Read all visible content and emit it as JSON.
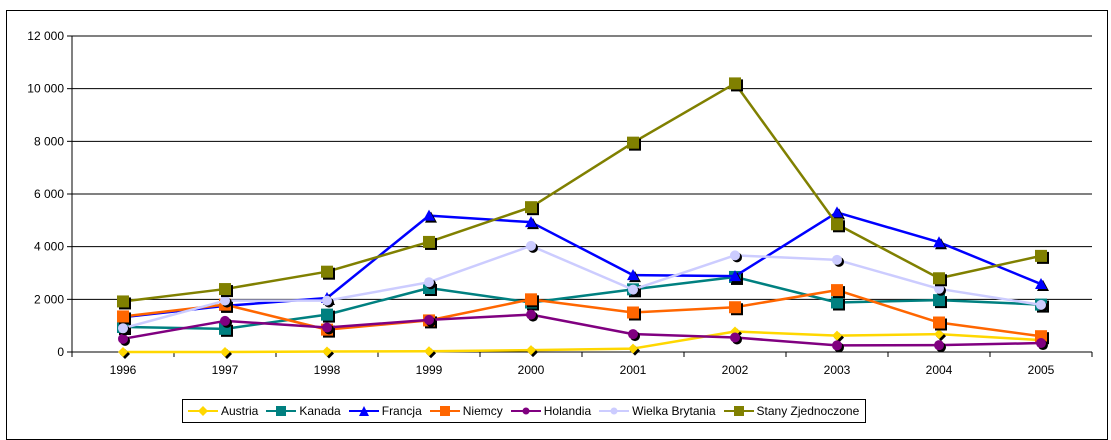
{
  "title": "",
  "chart_data": {
    "type": "line",
    "title": "",
    "xlabel": "",
    "ylabel": "",
    "categories": [
      "1996",
      "1997",
      "1998",
      "1999",
      "2000",
      "2001",
      "2002",
      "2003",
      "2004",
      "2005"
    ],
    "ylim": [
      0,
      12000
    ],
    "yticks": [
      0,
      2000,
      4000,
      6000,
      8000,
      10000,
      12000
    ],
    "ytick_labels": [
      "0",
      "2 000",
      "4 000",
      "6 000",
      "8 000",
      "10 000",
      "12 000"
    ],
    "grid": "horizontal",
    "legend_position": "bottom",
    "series": [
      {
        "name": "Austria",
        "color": "#FFD700",
        "marker": "diamond",
        "values": [
          0,
          0,
          20,
          30,
          70,
          130,
          780,
          620,
          680,
          450
        ]
      },
      {
        "name": "Kanada",
        "color": "#008080",
        "marker": "square",
        "values": [
          950,
          880,
          1420,
          2430,
          1880,
          2380,
          2850,
          1880,
          1970,
          1800
        ]
      },
      {
        "name": "Francja",
        "color": "#0000FF",
        "marker": "triangle",
        "values": [
          1320,
          1750,
          2050,
          5180,
          4930,
          2920,
          2880,
          5300,
          4170,
          2580
        ]
      },
      {
        "name": "Niemcy",
        "color": "#FF6600",
        "marker": "square",
        "values": [
          1350,
          1800,
          850,
          1200,
          2000,
          1500,
          1700,
          2350,
          1120,
          600
        ]
      },
      {
        "name": "Holandia",
        "color": "#800080",
        "marker": "circle",
        "values": [
          500,
          1180,
          930,
          1220,
          1420,
          680,
          550,
          250,
          260,
          340
        ]
      },
      {
        "name": "Wielka Brytania",
        "color": "#CCCCFF",
        "marker": "circle",
        "values": [
          900,
          1950,
          1950,
          2650,
          4030,
          2370,
          3670,
          3500,
          2400,
          1790
        ]
      },
      {
        "name": "Stany Zjednoczone",
        "color": "#808000",
        "marker": "square",
        "values": [
          1920,
          2390,
          3050,
          4180,
          5500,
          7950,
          10200,
          4850,
          2800,
          3650
        ]
      }
    ]
  }
}
